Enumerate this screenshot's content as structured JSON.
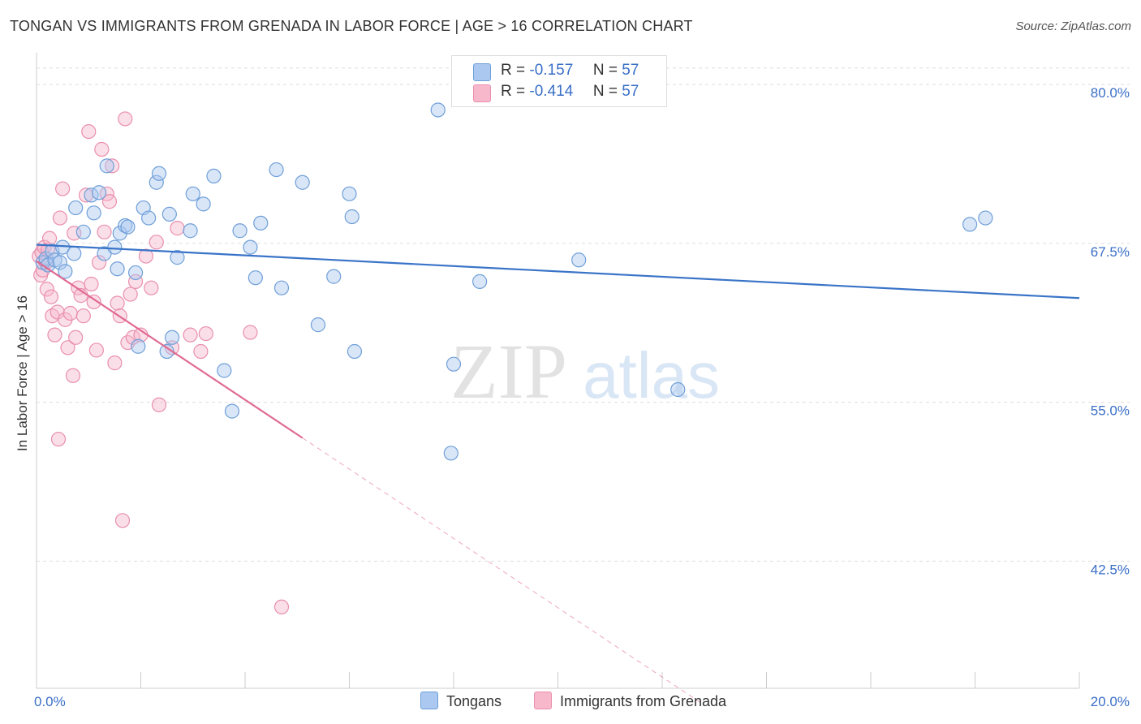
{
  "title": "TONGAN VS IMMIGRANTS FROM GRENADA IN LABOR FORCE | AGE > 16 CORRELATION CHART",
  "source": "Source: ZipAtlas.com",
  "watermark": {
    "zip": "ZIP",
    "atlas": "atlas"
  },
  "legend_top": {
    "tongans": {
      "r_label": "R =",
      "r_value": "-0.157",
      "n_label": "N =",
      "n_value": "57"
    },
    "grenada": {
      "r_label": "R =",
      "r_value": "-0.414",
      "n_label": "N =",
      "n_value": "57"
    }
  },
  "colors": {
    "tongans_fill": "#aac8f0",
    "tongans_stroke": "#6f9fd8",
    "tongans_line": "#3a74c8",
    "grenada_fill": "#f7b8cc",
    "grenada_stroke": "#e98fae",
    "grenada_line": "#e06a93",
    "grid": "#dddddd",
    "axis_text": "#3a6fc7"
  },
  "chart_data": {
    "type": "scatter",
    "title": "TONGAN VS IMMIGRANTS FROM GRENADA IN LABOR FORCE | AGE > 16 CORRELATION CHART",
    "xlabel": "",
    "ylabel": "In Labor Force | Age > 16",
    "xlim": [
      0,
      20
    ],
    "ylim": [
      32.5,
      82.5
    ],
    "x_tick_labels": [
      "0.0%",
      "20.0%"
    ],
    "y_ticks": [
      42.5,
      55.0,
      67.5,
      80.0
    ],
    "y_tick_labels": [
      "42.5%",
      "55.0%",
      "67.5%",
      "80.0%"
    ],
    "grid": true,
    "legend_position": "bottom",
    "series": [
      {
        "name": "Tongans",
        "points": [
          [
            0.12,
            66.0
          ],
          [
            0.18,
            66.3
          ],
          [
            0.22,
            65.8
          ],
          [
            0.3,
            66.9
          ],
          [
            0.35,
            66.2
          ],
          [
            0.45,
            66.0
          ],
          [
            0.5,
            67.2
          ],
          [
            0.55,
            65.3
          ],
          [
            0.72,
            66.7
          ],
          [
            0.75,
            70.3
          ],
          [
            0.9,
            68.4
          ],
          [
            1.05,
            71.3
          ],
          [
            1.1,
            69.9
          ],
          [
            1.2,
            71.5
          ],
          [
            1.3,
            66.7
          ],
          [
            1.35,
            73.6
          ],
          [
            1.5,
            67.2
          ],
          [
            1.55,
            65.5
          ],
          [
            1.6,
            68.3
          ],
          [
            1.7,
            68.9
          ],
          [
            1.75,
            68.8
          ],
          [
            1.9,
            65.2
          ],
          [
            1.95,
            59.4
          ],
          [
            2.05,
            70.3
          ],
          [
            2.15,
            69.5
          ],
          [
            2.3,
            72.3
          ],
          [
            2.35,
            73.0
          ],
          [
            2.5,
            59.0
          ],
          [
            2.55,
            69.8
          ],
          [
            2.6,
            60.1
          ],
          [
            2.7,
            66.4
          ],
          [
            2.95,
            68.5
          ],
          [
            3.0,
            71.4
          ],
          [
            3.2,
            70.6
          ],
          [
            3.4,
            72.8
          ],
          [
            3.6,
            57.5
          ],
          [
            3.75,
            54.3
          ],
          [
            3.9,
            68.5
          ],
          [
            4.1,
            67.2
          ],
          [
            4.2,
            64.8
          ],
          [
            4.3,
            69.1
          ],
          [
            4.6,
            73.3
          ],
          [
            4.7,
            64.0
          ],
          [
            5.1,
            72.3
          ],
          [
            5.4,
            61.1
          ],
          [
            5.7,
            64.9
          ],
          [
            6.0,
            71.4
          ],
          [
            6.05,
            69.6
          ],
          [
            6.1,
            59.0
          ],
          [
            7.7,
            78.0
          ],
          [
            7.95,
            51.0
          ],
          [
            8.0,
            58.0
          ],
          [
            8.5,
            64.5
          ],
          [
            10.4,
            66.2
          ],
          [
            12.3,
            56.0
          ],
          [
            17.9,
            69.0
          ],
          [
            18.2,
            69.5
          ]
        ],
        "trend": {
          "x": [
            0,
            20
          ],
          "y": [
            67.4,
            63.2
          ]
        }
      },
      {
        "name": "Immigrants from Grenada",
        "points": [
          [
            0.05,
            66.5
          ],
          [
            0.08,
            65.0
          ],
          [
            0.1,
            66.8
          ],
          [
            0.12,
            65.4
          ],
          [
            0.15,
            67.2
          ],
          [
            0.18,
            66.0
          ],
          [
            0.2,
            63.9
          ],
          [
            0.22,
            67.0
          ],
          [
            0.25,
            67.9
          ],
          [
            0.28,
            63.3
          ],
          [
            0.3,
            61.8
          ],
          [
            0.35,
            60.3
          ],
          [
            0.4,
            62.1
          ],
          [
            0.42,
            52.1
          ],
          [
            0.45,
            69.5
          ],
          [
            0.5,
            71.8
          ],
          [
            0.55,
            61.5
          ],
          [
            0.6,
            59.3
          ],
          [
            0.65,
            62.0
          ],
          [
            0.7,
            57.1
          ],
          [
            0.72,
            68.3
          ],
          [
            0.75,
            60.1
          ],
          [
            0.8,
            64.0
          ],
          [
            0.85,
            63.4
          ],
          [
            0.9,
            61.8
          ],
          [
            0.95,
            71.3
          ],
          [
            1.0,
            76.3
          ],
          [
            1.05,
            64.3
          ],
          [
            1.1,
            62.9
          ],
          [
            1.15,
            59.1
          ],
          [
            1.2,
            66.0
          ],
          [
            1.25,
            74.9
          ],
          [
            1.3,
            68.4
          ],
          [
            1.35,
            71.4
          ],
          [
            1.4,
            70.8
          ],
          [
            1.45,
            73.6
          ],
          [
            1.5,
            58.1
          ],
          [
            1.55,
            62.8
          ],
          [
            1.6,
            61.8
          ],
          [
            1.65,
            45.7
          ],
          [
            1.7,
            77.3
          ],
          [
            1.75,
            59.7
          ],
          [
            1.8,
            63.5
          ],
          [
            1.85,
            60.1
          ],
          [
            1.9,
            64.5
          ],
          [
            2.0,
            60.3
          ],
          [
            2.1,
            66.5
          ],
          [
            2.2,
            64.0
          ],
          [
            2.3,
            67.6
          ],
          [
            2.35,
            54.8
          ],
          [
            2.6,
            59.3
          ],
          [
            2.7,
            68.7
          ],
          [
            2.95,
            60.3
          ],
          [
            3.15,
            59.0
          ],
          [
            3.25,
            60.4
          ],
          [
            4.1,
            60.5
          ],
          [
            4.7,
            38.9
          ]
        ],
        "trend": {
          "x": [
            0,
            5.1
          ],
          "y": [
            66.1,
            52.2
          ]
        },
        "trend_extension": {
          "x": [
            5.1,
            12.8
          ],
          "y": [
            52.2,
            31.2
          ]
        }
      }
    ]
  }
}
